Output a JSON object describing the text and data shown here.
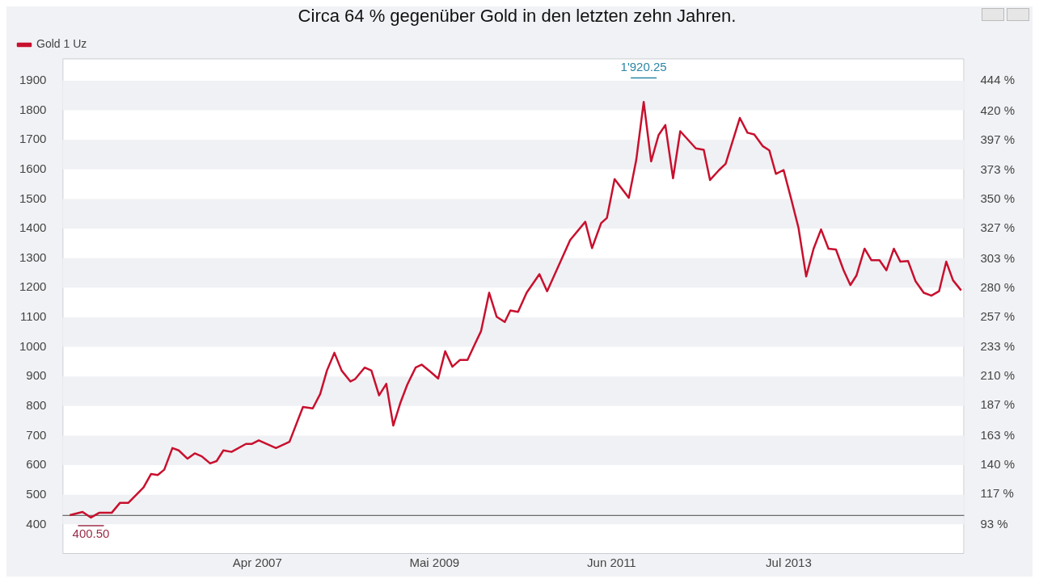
{
  "chart_data": {
    "type": "line",
    "title": "Circa 64 % gegenüber Gold in den letzten zehn Jahren.",
    "x": [
      "2005-01-15",
      "2005-03-11",
      "2005-04-16",
      "2005-05-21",
      "2005-07-14",
      "2005-08-19",
      "2005-09-24",
      "2005-11-28",
      "2005-12-30",
      "2006-01-28",
      "2006-02-25",
      "2006-04-01",
      "2006-04-28",
      "2006-06-05",
      "2006-07-06",
      "2006-08-05",
      "2006-09-10",
      "2006-10-08",
      "2006-11-06",
      "2006-12-11",
      "2007-02-11",
      "2007-03-09",
      "2007-04-07",
      "2007-06-20",
      "2007-08-17",
      "2007-10-14",
      "2007-11-25",
      "2007-12-27",
      "2008-01-25",
      "2008-02-26",
      "2008-03-28",
      "2008-05-05",
      "2008-05-25",
      "2008-07-05",
      "2008-08-03",
      "2008-09-05",
      "2008-10-06",
      "2008-11-05",
      "2008-12-06",
      "2009-01-04",
      "2009-02-09",
      "2009-03-07",
      "2009-04-12",
      "2009-05-17",
      "2009-06-16",
      "2009-07-17",
      "2009-08-19",
      "2009-09-20",
      "2009-10-19",
      "2009-11-17",
      "2009-12-22",
      "2010-01-23",
      "2010-02-27",
      "2010-03-23",
      "2010-04-25",
      "2010-06-01",
      "2010-07-26",
      "2010-08-28",
      "2010-12-05",
      "2011-02-08",
      "2011-03-09",
      "2011-04-17",
      "2011-05-12",
      "2011-06-14",
      "2011-08-14",
      "2011-09-15",
      "2011-10-17",
      "2011-11-18",
      "2011-12-20",
      "2012-01-18",
      "2012-02-20",
      "2012-03-22",
      "2012-05-28",
      "2012-07-01",
      "2012-07-28",
      "2012-09-05",
      "2012-10-03",
      "2012-12-03",
      "2013-01-05",
      "2013-02-03",
      "2013-03-11",
      "2013-04-09",
      "2013-05-07",
      "2013-06-09",
      "2013-07-11",
      "2013-08-12",
      "2013-09-14",
      "2013-10-16",
      "2013-11-17",
      "2013-12-19",
      "2014-01-20",
      "2014-02-22",
      "2014-03-23",
      "2014-04-18",
      "2014-05-23",
      "2014-06-21",
      "2014-07-26",
      "2014-08-25",
      "2014-09-26",
      "2014-10-24",
      "2014-11-26",
      "2014-12-28",
      "2015-02-01",
      "2015-03-06",
      "2015-04-08",
      "2015-05-09",
      "2015-06-07",
      "2015-07-12"
    ],
    "series": [
      {
        "name": "Gold 1 Uz",
        "color": "#c8102e",
        "values": [
          431,
          442,
          423,
          439,
          439,
          473,
          473,
          525,
          570,
          567,
          585,
          658,
          650,
          622,
          640,
          630,
          606,
          614,
          650,
          645,
          672,
          672,
          684,
          658,
          679,
          797,
          792,
          841,
          920,
          980,
          920,
          883,
          891,
          930,
          920,
          836,
          875,
          734,
          812,
          872,
          930,
          940,
          917,
          893,
          985,
          933,
          956,
          956,
          1005,
          1053,
          1183,
          1102,
          1084,
          1123,
          1118,
          1183,
          1246,
          1188,
          1361,
          1423,
          1334,
          1418,
          1436,
          1567,
          1504,
          1632,
          1828,
          1627,
          1716,
          1750,
          1570,
          1729,
          1671,
          1666,
          1564,
          1598,
          1619,
          1774,
          1724,
          1718,
          1679,
          1664,
          1585,
          1598,
          1502,
          1403,
          1238,
          1332,
          1397,
          1332,
          1329,
          1259,
          1209,
          1241,
          1332,
          1293,
          1293,
          1259,
          1332,
          1288,
          1290,
          1222,
          1183,
          1173,
          1188,
          1288,
          1225,
          1191
        ]
      }
    ],
    "xlim": [
      "2004-12-15",
      "2015-07-25"
    ],
    "xticks": [
      {
        "value": "2007-04",
        "label": "Apr 2007"
      },
      {
        "value": "2009-05",
        "label": "Mai 2009"
      },
      {
        "value": "2011-06",
        "label": "Jun 2011"
      },
      {
        "value": "2013-07",
        "label": "Jul 2013"
      }
    ],
    "ylim": [
      300,
      1975
    ],
    "yticks": [
      400,
      500,
      600,
      700,
      800,
      900,
      1000,
      1100,
      1200,
      1300,
      1400,
      1500,
      1600,
      1700,
      1800,
      1900
    ],
    "y2lim": [
      69.6,
      461.6
    ],
    "y2ticks": [
      {
        "value": 93,
        "label": "93 %"
      },
      {
        "value": 117,
        "label": "117 %"
      },
      {
        "value": 140,
        "label": "140 %"
      },
      {
        "value": 163,
        "label": "163 %"
      },
      {
        "value": 187,
        "label": "187 %"
      },
      {
        "value": 210,
        "label": "210 %"
      },
      {
        "value": 233,
        "label": "233 %"
      },
      {
        "value": 257,
        "label": "257 %"
      },
      {
        "value": 280,
        "label": "280 %"
      },
      {
        "value": 303,
        "label": "303 %"
      },
      {
        "value": 327,
        "label": "327 %"
      },
      {
        "value": 350,
        "label": "350 %"
      },
      {
        "value": 373,
        "label": "373 %"
      },
      {
        "value": 397,
        "label": "397 %"
      },
      {
        "value": 420,
        "label": "420 %"
      },
      {
        "value": 444,
        "label": "444 %"
      }
    ],
    "ref_lines": [
      {
        "axis": "y",
        "value": 430,
        "color": "#6b6b6b"
      }
    ],
    "annotations": [
      "1'920.25",
      "400.50"
    ],
    "legend": "top left",
    "marker": "none",
    "line_style": "solid"
  }
}
